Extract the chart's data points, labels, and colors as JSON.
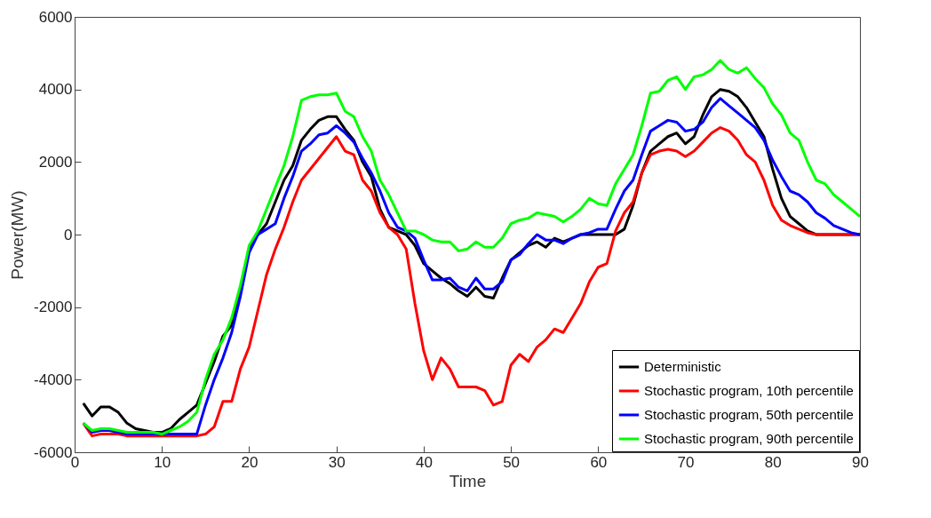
{
  "chart_data": {
    "type": "line",
    "xlabel": "Time",
    "ylabel": "Power(MW)",
    "x": [
      1,
      2,
      3,
      4,
      5,
      6,
      7,
      8,
      9,
      10,
      11,
      12,
      13,
      14,
      15,
      16,
      17,
      18,
      19,
      20,
      21,
      22,
      23,
      24,
      25,
      26,
      27,
      28,
      29,
      30,
      31,
      32,
      33,
      34,
      35,
      36,
      37,
      38,
      39,
      40,
      41,
      42,
      43,
      44,
      45,
      46,
      47,
      48,
      49,
      50,
      51,
      52,
      53,
      54,
      55,
      56,
      57,
      58,
      59,
      60,
      61,
      62,
      63,
      64,
      65,
      66,
      67,
      68,
      69,
      70,
      71,
      72,
      73,
      74,
      75,
      76,
      77,
      78,
      79,
      80,
      81,
      82,
      83,
      84,
      85,
      86,
      87,
      88,
      89,
      90
    ],
    "xlim": [
      0,
      90
    ],
    "xticks": [
      0,
      10,
      20,
      30,
      40,
      50,
      60,
      70,
      80,
      90
    ],
    "ylim": [
      -6000,
      6000
    ],
    "yticks": [
      -6000,
      -4000,
      -2000,
      0,
      2000,
      4000,
      6000
    ],
    "grid": false,
    "legend": "bottom right",
    "marker": "none",
    "line_style": "solid",
    "series": [
      {
        "name": "Deterministic",
        "color": "#000000",
        "values": [
          -4650,
          -5000,
          -4750,
          -4750,
          -4900,
          -5200,
          -5350,
          -5400,
          -5450,
          -5450,
          -5350,
          -5100,
          -4900,
          -4700,
          -4100,
          -3500,
          -2800,
          -2500,
          -1500,
          -400,
          0,
          300,
          900,
          1500,
          1900,
          2600,
          2900,
          3150,
          3250,
          3250,
          2900,
          2600,
          2000,
          1600,
          700,
          200,
          100,
          0,
          -300,
          -800,
          -1000,
          -1200,
          -1350,
          -1550,
          -1700,
          -1450,
          -1700,
          -1750,
          -1200,
          -700,
          -500,
          -300,
          -200,
          -350,
          -100,
          -200,
          -100,
          0,
          0,
          0,
          0,
          0,
          150,
          800,
          1700,
          2300,
          2500,
          2700,
          2800,
          2500,
          2700,
          3300,
          3800,
          4000,
          3950,
          3800,
          3500,
          3100,
          2700,
          1800,
          1000,
          500,
          300,
          100,
          0,
          0,
          0,
          0,
          0,
          0
        ]
      },
      {
        "name": "Stochastic program, 10th percentile",
        "color": "#ff0000",
        "values": [
          -5200,
          -5550,
          -5500,
          -5500,
          -5500,
          -5550,
          -5550,
          -5550,
          -5550,
          -5550,
          -5550,
          -5550,
          -5550,
          -5550,
          -5500,
          -5300,
          -4600,
          -4600,
          -3700,
          -3100,
          -2100,
          -1100,
          -400,
          200,
          900,
          1500,
          1800,
          2100,
          2400,
          2700,
          2300,
          2200,
          1500,
          1200,
          600,
          200,
          0,
          -400,
          -1900,
          -3200,
          -4000,
          -3400,
          -3700,
          -4200,
          -4200,
          -4200,
          -4300,
          -4700,
          -4600,
          -3600,
          -3300,
          -3500,
          -3100,
          -2900,
          -2600,
          -2700,
          -2300,
          -1900,
          -1300,
          -900,
          -800,
          100,
          600,
          900,
          1700,
          2200,
          2300,
          2350,
          2300,
          2150,
          2300,
          2550,
          2800,
          2950,
          2850,
          2600,
          2200,
          2000,
          1500,
          800,
          400,
          250,
          150,
          50,
          0,
          0,
          0,
          0,
          0,
          0
        ]
      },
      {
        "name": "Stochastic program, 50th percentile",
        "color": "#0000ff",
        "values": [
          -5200,
          -5450,
          -5400,
          -5400,
          -5450,
          -5500,
          -5500,
          -5500,
          -5500,
          -5500,
          -5500,
          -5500,
          -5500,
          -5500,
          -4700,
          -4000,
          -3400,
          -2700,
          -1700,
          -500,
          0,
          150,
          300,
          1000,
          1600,
          2300,
          2500,
          2750,
          2800,
          3000,
          2800,
          2550,
          2100,
          1700,
          1200,
          600,
          200,
          100,
          -100,
          -700,
          -1250,
          -1250,
          -1200,
          -1450,
          -1550,
          -1200,
          -1500,
          -1500,
          -1300,
          -700,
          -550,
          -250,
          0,
          -150,
          -150,
          -250,
          -100,
          0,
          50,
          150,
          150,
          700,
          1200,
          1500,
          2200,
          2850,
          3000,
          3150,
          3100,
          2850,
          2900,
          3100,
          3500,
          3750,
          3550,
          3350,
          3150,
          2950,
          2600,
          2050,
          1600,
          1200,
          1100,
          900,
          600,
          450,
          250,
          150,
          50,
          0
        ]
      },
      {
        "name": "Stochastic program, 90th percentile",
        "color": "#00ff00",
        "values": [
          -5200,
          -5400,
          -5350,
          -5350,
          -5400,
          -5450,
          -5450,
          -5450,
          -5450,
          -5500,
          -5400,
          -5300,
          -5150,
          -4900,
          -4000,
          -3300,
          -2900,
          -2300,
          -1400,
          -300,
          100,
          700,
          1300,
          1900,
          2700,
          3700,
          3800,
          3850,
          3850,
          3900,
          3400,
          3250,
          2700,
          2300,
          1500,
          1100,
          600,
          100,
          100,
          0,
          -150,
          -200,
          -200,
          -450,
          -400,
          -200,
          -350,
          -350,
          -100,
          300,
          400,
          450,
          600,
          550,
          500,
          350,
          500,
          700,
          1000,
          850,
          800,
          1400,
          1800,
          2200,
          3000,
          3900,
          3950,
          4250,
          4350,
          4000,
          4350,
          4400,
          4550,
          4800,
          4550,
          4450,
          4600,
          4300,
          4050,
          3600,
          3300,
          2800,
          2600,
          2000,
          1500,
          1400,
          1100,
          900,
          700,
          500
        ]
      }
    ]
  }
}
